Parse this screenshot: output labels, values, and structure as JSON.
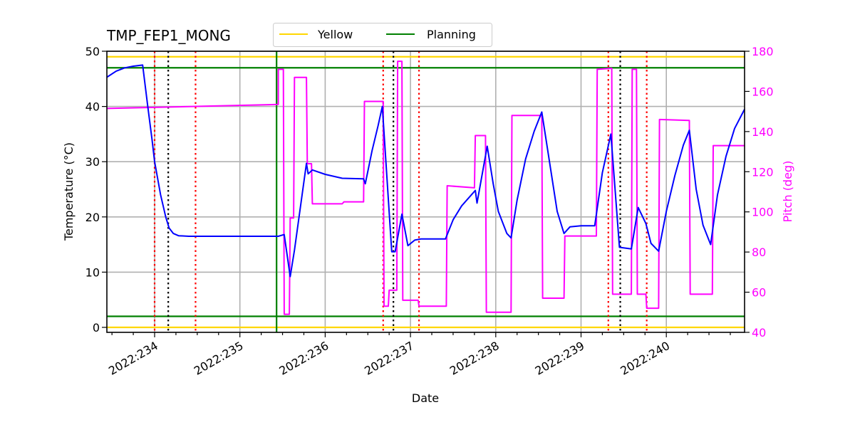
{
  "chart_data": {
    "type": "line",
    "title": "TMP_FEP1_MONG",
    "xlabel": "Date",
    "ylabel": "Temperature ($^\\circ$C)",
    "ylabel_display": "Temperature (°C)",
    "ylabel_right": "Pitch (deg)",
    "xlim_day": [
      233.44,
      240.92
    ],
    "ylim": [
      -1,
      50
    ],
    "ylim_right": [
      40,
      180
    ],
    "grid": true,
    "legend": {
      "position": "top-center, above plot",
      "entries": [
        {
          "label": "Yellow",
          "color": "#ffd700"
        },
        {
          "label": "Planning",
          "color": "#008000"
        }
      ]
    },
    "x_ticks": [
      {
        "day": 234,
        "label": "2022:234"
      },
      {
        "day": 235,
        "label": "2022:235"
      },
      {
        "day": 236,
        "label": "2022:236"
      },
      {
        "day": 237,
        "label": "2022:237"
      },
      {
        "day": 238,
        "label": "2022:238"
      },
      {
        "day": 239,
        "label": "2022:239"
      },
      {
        "day": 240,
        "label": "2022:240"
      }
    ],
    "y_ticks": [
      0,
      10,
      20,
      30,
      40,
      50
    ],
    "y_ticks_right": [
      40,
      60,
      80,
      100,
      120,
      140,
      160,
      180
    ],
    "limits": {
      "yellow": {
        "low": 0.0,
        "high": 49.0,
        "color": "#ffd700"
      },
      "planning": {
        "low": 2.0,
        "high": 47.0,
        "color": "#008000"
      }
    },
    "vertical_lines": {
      "red_dotted": [
        234.0,
        234.48,
        236.68,
        237.1,
        239.32,
        239.77
      ],
      "black_dotted": [
        234.16,
        236.8,
        239.46
      ],
      "green_solid": [
        235.43
      ]
    },
    "series": [
      {
        "name": "TMP_FEP1_MONG",
        "axis": "left",
        "color": "#0000ff",
        "points": [
          [
            233.44,
            45.3
          ],
          [
            233.55,
            46.4
          ],
          [
            233.65,
            47.0
          ],
          [
            233.75,
            47.3
          ],
          [
            233.86,
            47.5
          ],
          [
            233.92,
            40.0
          ],
          [
            233.97,
            34.0
          ],
          [
            234.0,
            30.0
          ],
          [
            234.07,
            24.0
          ],
          [
            234.13,
            20.0
          ],
          [
            234.17,
            18.0
          ],
          [
            234.22,
            17.0
          ],
          [
            234.28,
            16.6
          ],
          [
            234.4,
            16.5
          ],
          [
            235.45,
            16.5
          ],
          [
            235.52,
            16.8
          ],
          [
            235.59,
            9.2
          ],
          [
            235.64,
            14.0
          ],
          [
            235.78,
            29.7
          ],
          [
            235.8,
            27.8
          ],
          [
            235.85,
            28.5
          ],
          [
            236.0,
            27.7
          ],
          [
            236.2,
            27.0
          ],
          [
            236.45,
            26.9
          ],
          [
            236.47,
            26.0
          ],
          [
            236.55,
            32.0
          ],
          [
            236.62,
            36.5
          ],
          [
            236.67,
            40.0
          ],
          [
            236.78,
            13.7
          ],
          [
            236.82,
            13.7
          ],
          [
            236.9,
            20.5
          ],
          [
            236.97,
            14.8
          ],
          [
            237.05,
            15.8
          ],
          [
            237.12,
            16.0
          ],
          [
            237.41,
            16.0
          ],
          [
            237.5,
            19.5
          ],
          [
            237.6,
            22.0
          ],
          [
            237.76,
            24.8
          ],
          [
            237.78,
            22.5
          ],
          [
            237.9,
            32.8
          ],
          [
            237.97,
            26.0
          ],
          [
            238.03,
            21.0
          ],
          [
            238.08,
            19.0
          ],
          [
            238.13,
            17.0
          ],
          [
            238.18,
            16.2
          ],
          [
            238.25,
            23.0
          ],
          [
            238.35,
            30.5
          ],
          [
            238.45,
            35.5
          ],
          [
            238.54,
            39.0
          ],
          [
            238.65,
            28.0
          ],
          [
            238.72,
            21.0
          ],
          [
            238.8,
            17.0
          ],
          [
            238.87,
            18.2
          ],
          [
            239.0,
            18.4
          ],
          [
            239.16,
            18.4
          ],
          [
            239.25,
            28.0
          ],
          [
            239.35,
            35.0
          ],
          [
            239.45,
            14.5
          ],
          [
            239.59,
            14.2
          ],
          [
            239.67,
            21.7
          ],
          [
            239.76,
            18.8
          ],
          [
            239.82,
            15.2
          ],
          [
            239.91,
            13.8
          ],
          [
            240.0,
            21.0
          ],
          [
            240.1,
            27.5
          ],
          [
            240.2,
            33.0
          ],
          [
            240.27,
            35.7
          ],
          [
            240.35,
            25.0
          ],
          [
            240.43,
            18.5
          ],
          [
            240.52,
            15.0
          ],
          [
            240.6,
            24.0
          ],
          [
            240.7,
            31.0
          ],
          [
            240.8,
            36.0
          ],
          [
            240.92,
            39.5
          ]
        ]
      },
      {
        "name": "Pitch",
        "axis": "right",
        "color": "#ff00ff",
        "points": [
          [
            233.44,
            151.5
          ],
          [
            235.45,
            153.5
          ],
          [
            235.45,
            171.0
          ],
          [
            235.51,
            171.0
          ],
          [
            235.52,
            49.0
          ],
          [
            235.58,
            49.0
          ],
          [
            235.59,
            97.0
          ],
          [
            235.63,
            97.0
          ],
          [
            235.64,
            167.0
          ],
          [
            235.78,
            167.0
          ],
          [
            235.79,
            124.0
          ],
          [
            235.84,
            124.0
          ],
          [
            235.85,
            104.0
          ],
          [
            236.2,
            104.0
          ],
          [
            236.22,
            105.0
          ],
          [
            236.45,
            105.0
          ],
          [
            236.46,
            155.0
          ],
          [
            236.68,
            155.0
          ],
          [
            236.69,
            53.0
          ],
          [
            236.74,
            53.0
          ],
          [
            236.75,
            61.0
          ],
          [
            236.84,
            61.0
          ],
          [
            236.85,
            175.0
          ],
          [
            236.9,
            175.0
          ],
          [
            236.91,
            56.0
          ],
          [
            237.09,
            56.0
          ],
          [
            237.1,
            53.0
          ],
          [
            237.42,
            53.0
          ],
          [
            237.43,
            113.0
          ],
          [
            237.75,
            112.0
          ],
          [
            237.76,
            138.0
          ],
          [
            237.88,
            138.0
          ],
          [
            237.89,
            50.0
          ],
          [
            238.18,
            50.0
          ],
          [
            238.19,
            148.0
          ],
          [
            238.54,
            148.0
          ],
          [
            238.55,
            57.0
          ],
          [
            238.8,
            57.0
          ],
          [
            238.81,
            88.0
          ],
          [
            239.18,
            88.0
          ],
          [
            239.19,
            171.0
          ],
          [
            239.36,
            171.5
          ],
          [
            239.37,
            59.0
          ],
          [
            239.59,
            59.0
          ],
          [
            239.6,
            171.0
          ],
          [
            239.65,
            171.0
          ],
          [
            239.66,
            59.0
          ],
          [
            239.76,
            59.0
          ],
          [
            239.77,
            52.0
          ],
          [
            239.91,
            52.0
          ],
          [
            239.92,
            146.0
          ],
          [
            240.27,
            145.5
          ],
          [
            240.28,
            59.0
          ],
          [
            240.54,
            59.0
          ],
          [
            240.55,
            133.0
          ],
          [
            240.92,
            133.0
          ]
        ]
      }
    ]
  }
}
